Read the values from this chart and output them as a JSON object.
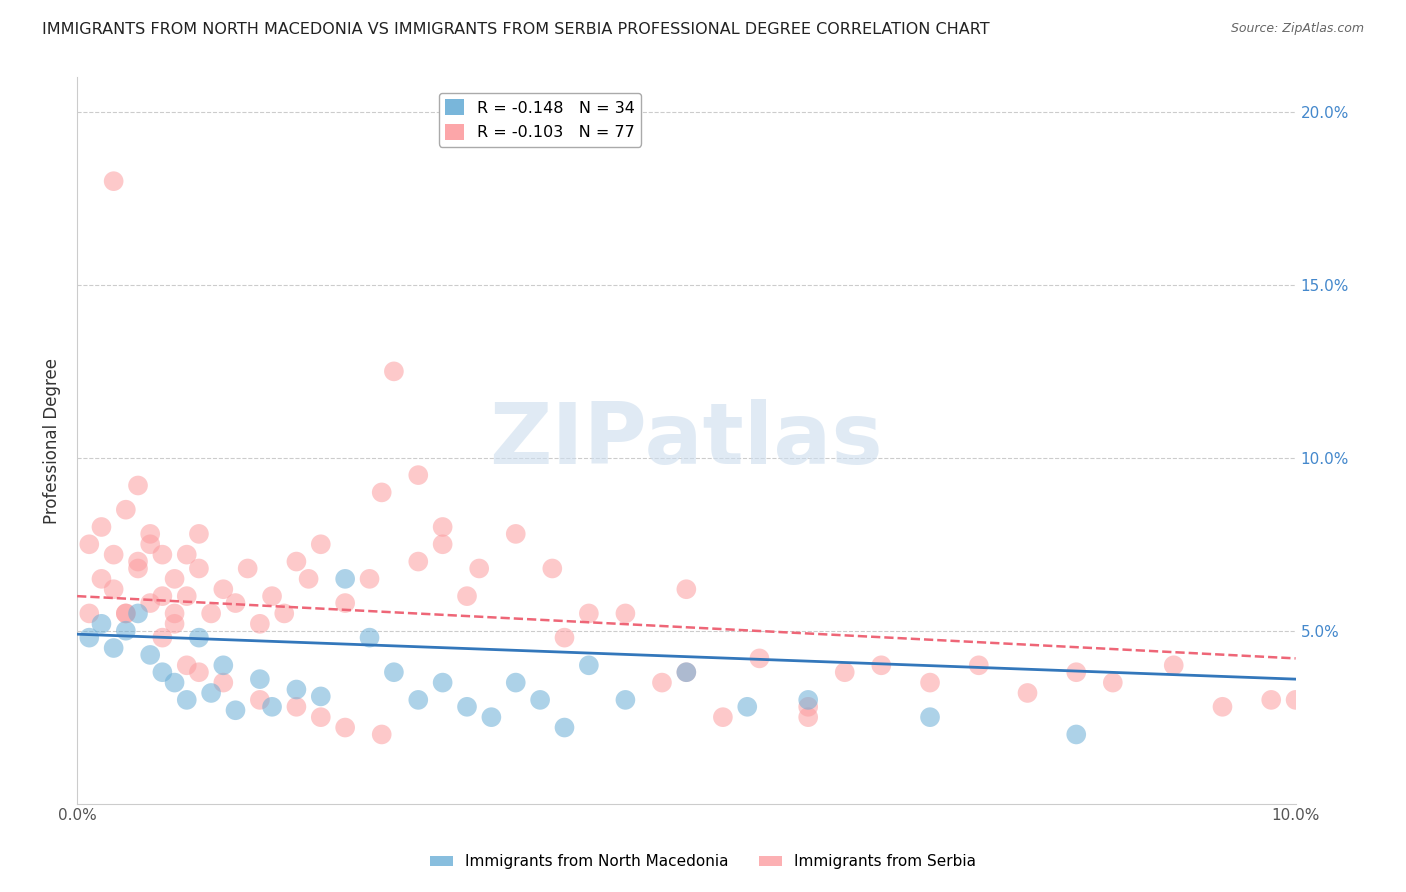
{
  "title": "IMMIGRANTS FROM NORTH MACEDONIA VS IMMIGRANTS FROM SERBIA PROFESSIONAL DEGREE CORRELATION CHART",
  "source": "Source: ZipAtlas.com",
  "ylabel": "Professional Degree",
  "xlim": [
    0.0,
    0.1
  ],
  "ylim": [
    0.0,
    0.21
  ],
  "x_ticks": [
    0.0,
    0.02,
    0.04,
    0.06,
    0.08,
    0.1
  ],
  "x_tick_labels": [
    "0.0%",
    "",
    "",
    "",
    "",
    "10.0%"
  ],
  "y_ticks": [
    0.05,
    0.1,
    0.15,
    0.2
  ],
  "y_tick_labels": [
    "5.0%",
    "10.0%",
    "15.0%",
    "20.0%"
  ],
  "legend_entries": [
    {
      "label": "R = -0.148   N = 34",
      "color": "#6baed6"
    },
    {
      "label": "R = -0.103   N = 77",
      "color": "#fc8d8d"
    }
  ],
  "series1_color": "#6baed6",
  "series2_color": "#fc9da0",
  "series1_name": "Immigrants from North Macedonia",
  "series2_name": "Immigrants from Serbia",
  "watermark": "ZIPatlas",
  "grid_color": "#cccccc",
  "background_color": "#ffffff",
  "series1_x": [
    0.001,
    0.002,
    0.003,
    0.004,
    0.005,
    0.006,
    0.007,
    0.008,
    0.009,
    0.01,
    0.011,
    0.012,
    0.013,
    0.015,
    0.016,
    0.018,
    0.02,
    0.022,
    0.024,
    0.026,
    0.028,
    0.03,
    0.032,
    0.034,
    0.036,
    0.038,
    0.04,
    0.042,
    0.045,
    0.05,
    0.055,
    0.06,
    0.07,
    0.082
  ],
  "series1_y": [
    0.048,
    0.052,
    0.045,
    0.05,
    0.055,
    0.043,
    0.038,
    0.035,
    0.03,
    0.048,
    0.032,
    0.04,
    0.027,
    0.036,
    0.028,
    0.033,
    0.031,
    0.065,
    0.048,
    0.038,
    0.03,
    0.035,
    0.028,
    0.025,
    0.035,
    0.03,
    0.022,
    0.04,
    0.03,
    0.038,
    0.028,
    0.03,
    0.025,
    0.02
  ],
  "series2_x": [
    0.001,
    0.001,
    0.002,
    0.002,
    0.003,
    0.003,
    0.004,
    0.004,
    0.005,
    0.005,
    0.006,
    0.006,
    0.007,
    0.007,
    0.008,
    0.008,
    0.009,
    0.009,
    0.01,
    0.01,
    0.011,
    0.012,
    0.013,
    0.014,
    0.015,
    0.016,
    0.017,
    0.018,
    0.019,
    0.02,
    0.022,
    0.024,
    0.026,
    0.028,
    0.03,
    0.033,
    0.036,
    0.039,
    0.042,
    0.045,
    0.048,
    0.05,
    0.053,
    0.056,
    0.06,
    0.063,
    0.066,
    0.07,
    0.074,
    0.078,
    0.082,
    0.085,
    0.09,
    0.094,
    0.098,
    0.1,
    0.025,
    0.028,
    0.03,
    0.032,
    0.003,
    0.004,
    0.005,
    0.006,
    0.007,
    0.008,
    0.009,
    0.01,
    0.012,
    0.015,
    0.018,
    0.02,
    0.022,
    0.025,
    0.04,
    0.05,
    0.06
  ],
  "series2_y": [
    0.055,
    0.075,
    0.065,
    0.08,
    0.062,
    0.072,
    0.055,
    0.085,
    0.068,
    0.092,
    0.078,
    0.058,
    0.072,
    0.048,
    0.065,
    0.055,
    0.072,
    0.06,
    0.068,
    0.078,
    0.055,
    0.062,
    0.058,
    0.068,
    0.052,
    0.06,
    0.055,
    0.07,
    0.065,
    0.075,
    0.058,
    0.065,
    0.125,
    0.095,
    0.08,
    0.068,
    0.078,
    0.068,
    0.055,
    0.055,
    0.035,
    0.062,
    0.025,
    0.042,
    0.025,
    0.038,
    0.04,
    0.035,
    0.04,
    0.032,
    0.038,
    0.035,
    0.04,
    0.028,
    0.03,
    0.03,
    0.09,
    0.07,
    0.075,
    0.06,
    0.18,
    0.055,
    0.07,
    0.075,
    0.06,
    0.052,
    0.04,
    0.038,
    0.035,
    0.03,
    0.028,
    0.025,
    0.022,
    0.02,
    0.048,
    0.038,
    0.028
  ],
  "trendline_s1_x0": 0.0,
  "trendline_s1_x1": 0.1,
  "trendline_s1_y0": 0.049,
  "trendline_s1_y1": 0.036,
  "trendline_s2_x0": 0.0,
  "trendline_s2_x1": 0.1,
  "trendline_s2_y0": 0.06,
  "trendline_s2_y1": 0.042
}
